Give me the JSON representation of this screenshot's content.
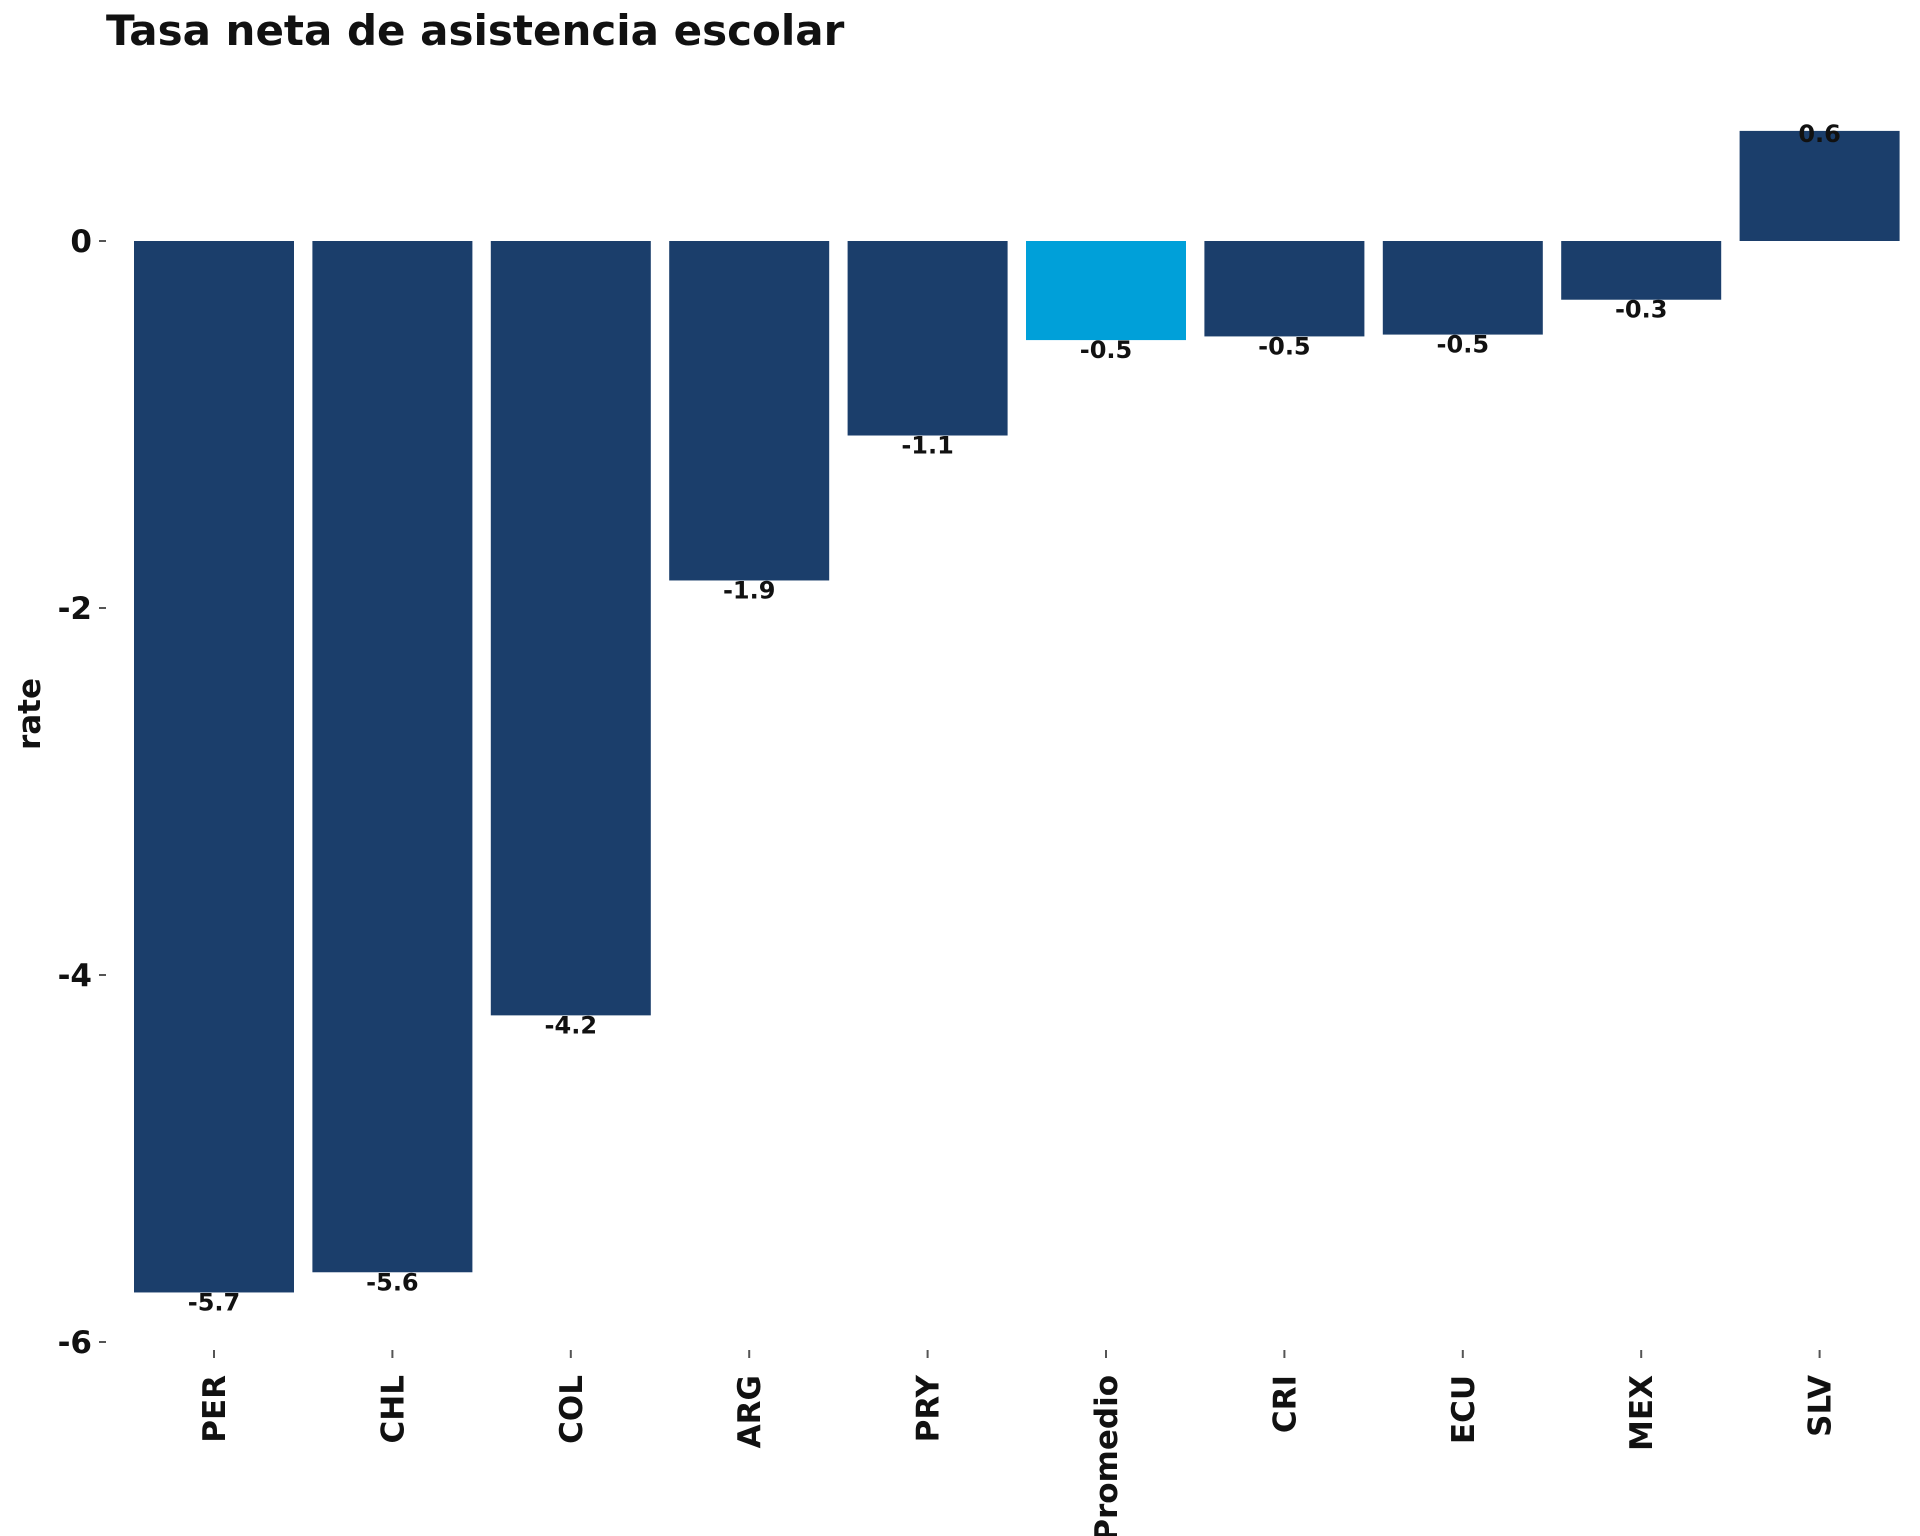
{
  "chart_data": {
    "type": "bar",
    "title": "Tasa neta de asistencia escolar",
    "xlabel": "",
    "ylabel": "rate",
    "ylim": [
      -6,
      0.6
    ],
    "yticks": [
      0,
      -2,
      -4,
      -6
    ],
    "categories": [
      "PER",
      "CHL",
      "COL",
      "ARG",
      "PRY",
      "Promedio",
      "CRI",
      "ECU",
      "MEX",
      "SLV"
    ],
    "values": [
      -5.73,
      -5.62,
      -4.22,
      -1.85,
      -1.06,
      -0.54,
      -0.52,
      -0.51,
      -0.32,
      0.6
    ],
    "labels": [
      "-5.7",
      "-5.6",
      "-4.2",
      "-1.9",
      "-1.1",
      "-0.5",
      "-0.5",
      "-0.5",
      "-0.3",
      "0.6"
    ],
    "highlight": "Promedio",
    "colors": {
      "default": "#1b3e6b",
      "highlight": "#00a0d9"
    },
    "grid": false,
    "legend": "none"
  }
}
